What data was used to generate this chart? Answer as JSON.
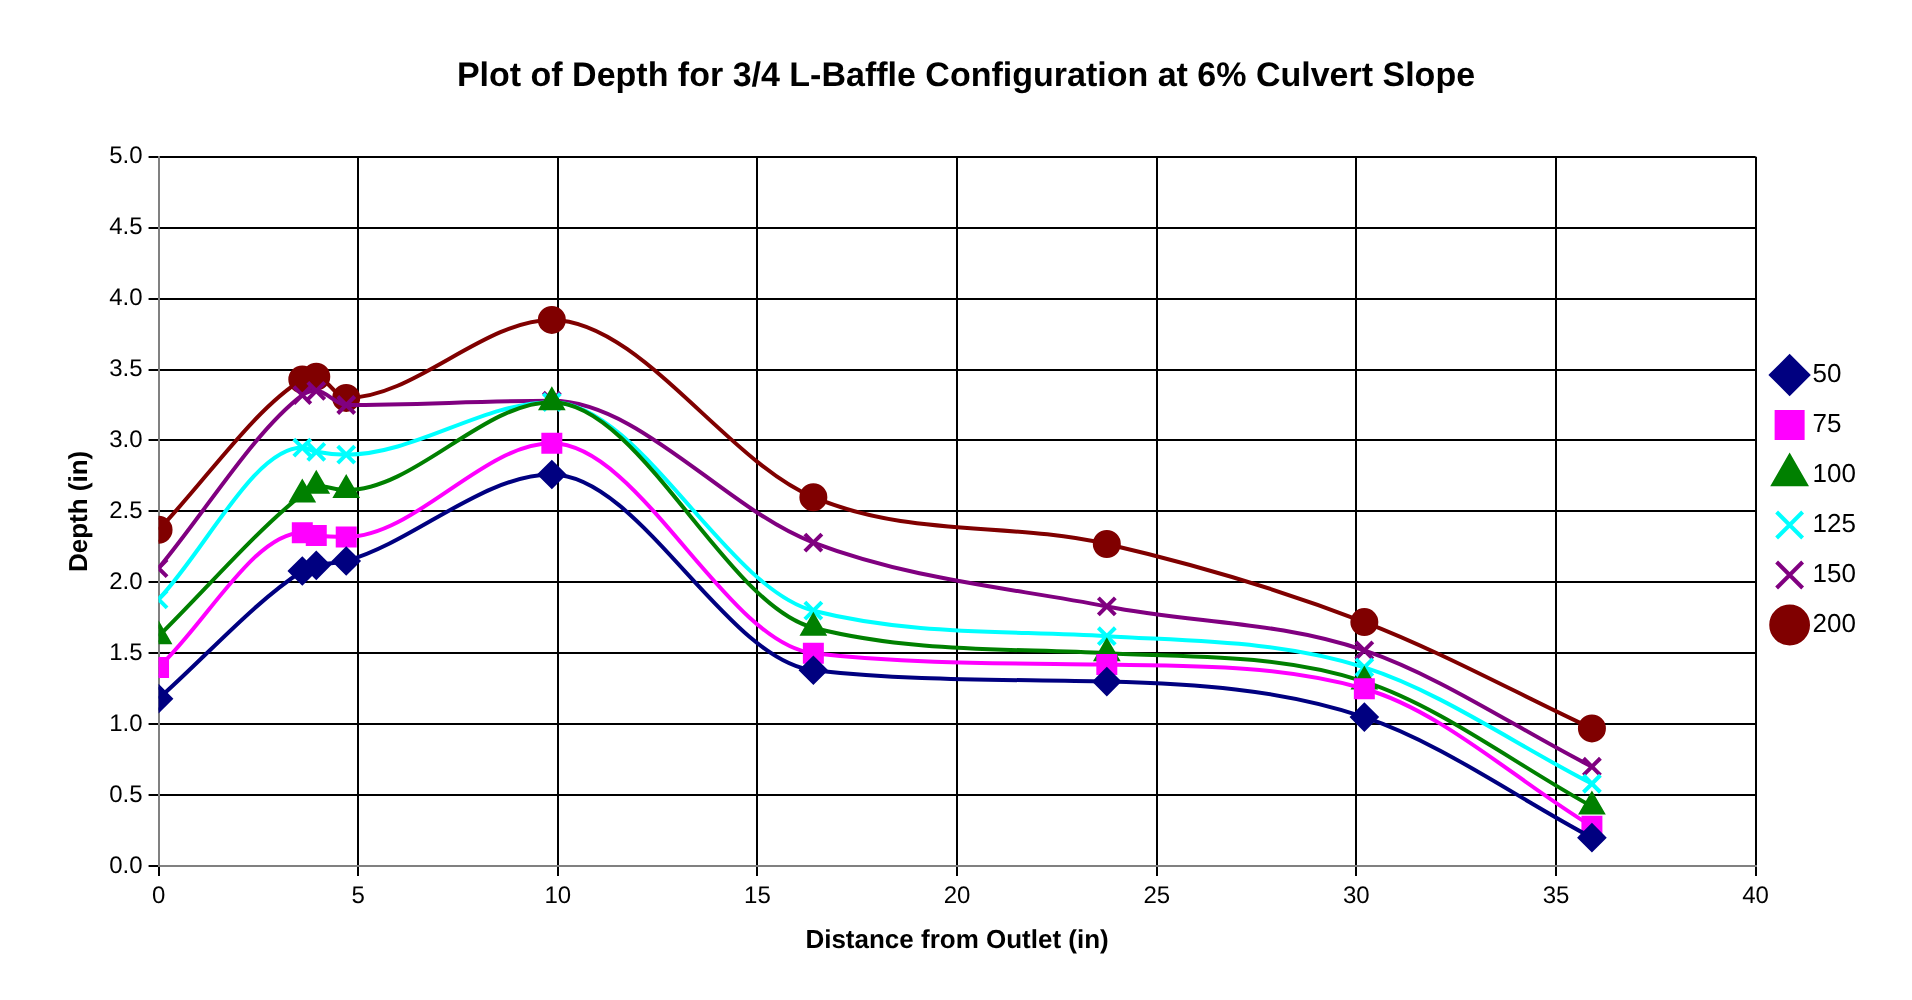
{
  "chart_data": {
    "type": "line",
    "title": "Plot of Depth for 3/4 L-Baffle Configuration at 6% Culvert Slope",
    "xlabel": "Distance from Outlet (in)",
    "ylabel": "Depth (in)",
    "x": [
      0,
      3.6,
      3.95,
      4.7,
      9.85,
      16.4,
      23.75,
      30.2,
      35.9
    ],
    "series": [
      {
        "name": "50",
        "color": "#000080",
        "marker": "diamond",
        "values": [
          1.18,
          2.08,
          2.12,
          2.15,
          2.76,
          1.38,
          1.3,
          1.05,
          0.2
        ]
      },
      {
        "name": "75",
        "color": "#ff00ff",
        "marker": "square",
        "values": [
          1.4,
          2.35,
          2.33,
          2.32,
          2.98,
          1.5,
          1.42,
          1.25,
          0.28
        ]
      },
      {
        "name": "100",
        "color": "#008000",
        "marker": "triangle",
        "values": [
          1.62,
          2.62,
          2.68,
          2.65,
          3.27,
          1.68,
          1.5,
          1.3,
          0.42
        ]
      },
      {
        "name": "125",
        "color": "#00ffff",
        "marker": "cross",
        "values": [
          1.88,
          2.95,
          2.92,
          2.9,
          3.27,
          1.8,
          1.62,
          1.4,
          0.58
        ]
      },
      {
        "name": "150",
        "color": "#800080",
        "marker": "cross",
        "values": [
          2.1,
          3.32,
          3.35,
          3.25,
          3.28,
          2.28,
          1.83,
          1.52,
          0.7
        ]
      },
      {
        "name": "200",
        "color": "#800000",
        "marker": "circle",
        "values": [
          2.37,
          3.43,
          3.45,
          3.3,
          3.85,
          2.6,
          2.27,
          1.72,
          0.97
        ]
      }
    ],
    "xlim": [
      0,
      40
    ],
    "xticks": [
      0,
      5,
      10,
      15,
      20,
      25,
      30,
      35,
      40
    ],
    "ylim": [
      0,
      5
    ],
    "yticks": [
      {
        "value": 0,
        "label": "0.0"
      },
      {
        "value": 0.5,
        "label": "0.5"
      },
      {
        "value": 1,
        "label": "1.0"
      },
      {
        "value": 1.5,
        "label": "1.5"
      },
      {
        "value": 2,
        "label": "2.0"
      },
      {
        "value": 2.5,
        "label": "2.5"
      },
      {
        "value": 3,
        "label": "3.0"
      },
      {
        "value": 3.5,
        "label": "3.5"
      },
      {
        "value": 4,
        "label": "4.0"
      },
      {
        "value": 4.5,
        "label": "4.5"
      },
      {
        "value": 5,
        "label": "5.0"
      }
    ],
    "grid": true,
    "legend": "right",
    "line_style": "solid"
  }
}
